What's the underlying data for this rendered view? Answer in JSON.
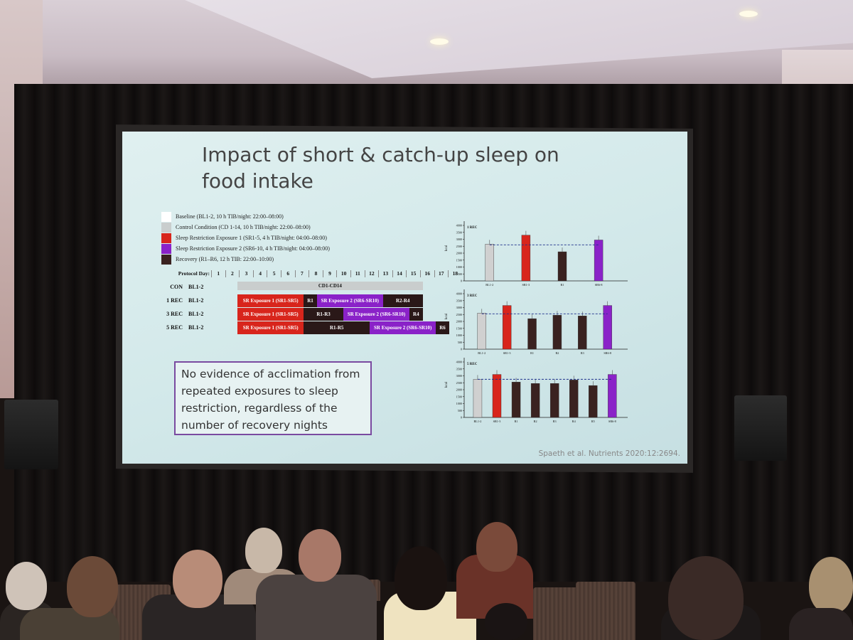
{
  "slide": {
    "title": "Impact of short & catch-up sleep on food intake",
    "citation": "Spaeth et al. Nutrients 2020:12:2694.",
    "message": "No evidence of acclimation from repeated exposures to sleep restriction, regardless of the number of recovery nights",
    "legend": [
      {
        "color": "#ffffff",
        "label": "Baseline (BL1-2, 10 h TIB/night: 22:00–08:00)"
      },
      {
        "color": "#c9cdcd",
        "label": "Control Condition (CD 1-14, 10 h TIB/night: 22:00–08:00)"
      },
      {
        "color": "#d8251c",
        "label": "Sleep Restriction Exposure 1 (SR1-5, 4 h TIB/night: 04:00–08:00)"
      },
      {
        "color": "#8a22c8",
        "label": "Sleep Restriction Exposure 2 (SR6-10, 4 h TIB/night: 04:00–08:00)"
      },
      {
        "color": "#3a2220",
        "label": "Recovery (R1–R6, 12 h TIB: 22:00–10:00)"
      }
    ],
    "protocol": {
      "header_label": "Protocol Day:",
      "days": [
        "1",
        "2",
        "3",
        "4",
        "5",
        "6",
        "7",
        "8",
        "9",
        "10",
        "11",
        "12",
        "13",
        "14",
        "15",
        "16",
        "17",
        "18"
      ],
      "rows": [
        {
          "label": "CON",
          "baseline": "BL1-2",
          "blocks": [
            {
              "text": "CD1-CD14",
              "color": "#c9cdcd",
              "textcolor": "#111",
              "start": 3,
              "end": 16
            }
          ]
        },
        {
          "label": "1 REC",
          "baseline": "BL1-2",
          "blocks": [
            {
              "text": "SR Exposure 1 (SR1-SR5)",
              "color": "#d8251c",
              "textcolor": "#fff",
              "start": 3,
              "end": 7
            },
            {
              "text": "R1",
              "color": "#2a1818",
              "textcolor": "#fff",
              "start": 8,
              "end": 8
            },
            {
              "text": "SR Exposure 2 (SR6-SR10)",
              "color": "#8a22c8",
              "textcolor": "#fff",
              "start": 9,
              "end": 13
            },
            {
              "text": "R2-R4",
              "color": "#2a1818",
              "textcolor": "#fff",
              "start": 14,
              "end": 16
            }
          ]
        },
        {
          "label": "3 REC",
          "baseline": "BL1-2",
          "blocks": [
            {
              "text": "SR Exposure 1 (SR1-SR5)",
              "color": "#d8251c",
              "textcolor": "#fff",
              "start": 3,
              "end": 7
            },
            {
              "text": "R1-R3",
              "color": "#2a1818",
              "textcolor": "#fff",
              "start": 8,
              "end": 10
            },
            {
              "text": "SR Exposure 2 (SR6-SR10)",
              "color": "#8a22c8",
              "textcolor": "#fff",
              "start": 11,
              "end": 15
            },
            {
              "text": "R4",
              "color": "#2a1818",
              "textcolor": "#fff",
              "start": 16,
              "end": 16
            }
          ]
        },
        {
          "label": "5 REC",
          "baseline": "BL1-2",
          "blocks": [
            {
              "text": "SR Exposure 1 (SR1-SR5)",
              "color": "#d8251c",
              "textcolor": "#fff",
              "start": 3,
              "end": 7
            },
            {
              "text": "R1-R5",
              "color": "#2a1818",
              "textcolor": "#fff",
              "start": 8,
              "end": 12
            },
            {
              "text": "SR Exposure 2 (SR6-SR10)",
              "color": "#8a22c8",
              "textcolor": "#fff",
              "start": 13,
              "end": 17
            },
            {
              "text": "R6",
              "color": "#2a1818",
              "textcolor": "#fff",
              "start": 18,
              "end": 18
            }
          ]
        }
      ]
    }
  },
  "chart_data": [
    {
      "type": "bar",
      "title": "1 REC",
      "ylabel": "kcal",
      "ylim": [
        0,
        4000
      ],
      "yticks": [
        "0",
        "500",
        "1000",
        "1500",
        "2000",
        "2500",
        "3000",
        "3500",
        "4000"
      ],
      "categories": [
        "BL1-2",
        "SR1-3",
        "R1",
        "SR6-8"
      ],
      "values": [
        2650,
        3300,
        2100,
        2950
      ],
      "colors": [
        "#d0d0d0",
        "#d8251c",
        "#3a2220",
        "#8a22c8"
      ],
      "reference_line": 2600
    },
    {
      "type": "bar",
      "title": "3 REC",
      "ylabel": "kcal",
      "ylim": [
        0,
        4000
      ],
      "yticks": [
        "0",
        "500",
        "1000",
        "1500",
        "2000",
        "2500",
        "3000",
        "3500",
        "4000"
      ],
      "categories": [
        "BL1-2",
        "SR1-3",
        "R1",
        "R2",
        "R3",
        "SR6-8"
      ],
      "values": [
        2600,
        3150,
        2200,
        2450,
        2400,
        3150
      ],
      "colors": [
        "#d0d0d0",
        "#d8251c",
        "#3a2220",
        "#3a2220",
        "#3a2220",
        "#8a22c8"
      ],
      "reference_line": 2550
    },
    {
      "type": "bar",
      "title": "5 REC",
      "ylabel": "kcal",
      "ylim": [
        0,
        4000
      ],
      "yticks": [
        "0",
        "500",
        "1000",
        "1500",
        "2000",
        "2500",
        "3000",
        "3500",
        "4000"
      ],
      "categories": [
        "BL1-2",
        "SR1-3",
        "R1",
        "R2",
        "R3",
        "R4",
        "R5",
        "SR6-8"
      ],
      "values": [
        2750,
        3100,
        2550,
        2450,
        2450,
        2700,
        2300,
        3100
      ],
      "colors": [
        "#d0d0d0",
        "#d8251c",
        "#3a2220",
        "#3a2220",
        "#3a2220",
        "#3a2220",
        "#3a2220",
        "#8a22c8"
      ],
      "reference_line": 2750
    }
  ]
}
